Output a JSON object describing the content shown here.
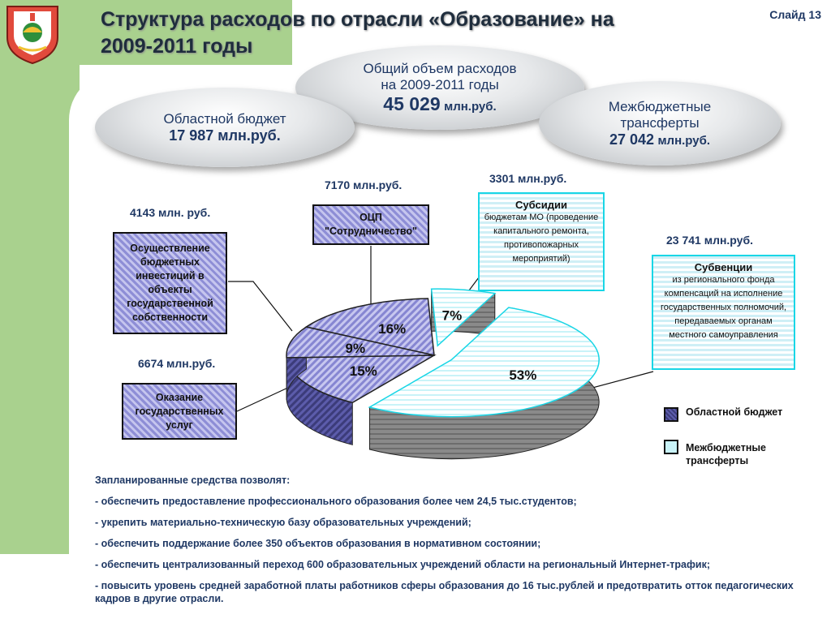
{
  "slide_label": "Слайд 13",
  "title_line1": "Структура расходов по отрасли «Образование» на",
  "title_line2": "2009-2011 годы",
  "total": {
    "line1": "Общий объем расходов",
    "line2": "на 2009-2011 годы",
    "value": "45 029",
    "unit": "млн.руб."
  },
  "regional": {
    "line1": "Областной бюджет",
    "value": "17 987 млн.руб."
  },
  "transfers": {
    "line1": "Межбюджетные",
    "line2": "трансферты",
    "value": "27 042",
    "unit": "млн.руб."
  },
  "boxes": {
    "invest": {
      "amount": "4143 млн. руб.",
      "text": "Осуществление бюджетных инвестиций в объекты государственной собственности"
    },
    "ocp": {
      "amount": "7170 млн.руб.",
      "text": "ОЦП \"Сотрудничество\""
    },
    "services": {
      "amount": "6674 млн.руб.",
      "text": "Оказание государственных услуг"
    },
    "subsidies": {
      "amount": "3301 млн.руб.",
      "head": "Субсидии",
      "text": "бюджетам МО (проведение капитального ремонта, противопожарных мероприятий)"
    },
    "subventions": {
      "amount": "23 741 млн.руб.",
      "head": "Субвенции",
      "text": "из регионального фонда компенсаций на исполнение государственных полномочий, передаваемых органам местного самоуправления"
    }
  },
  "chart_data": {
    "type": "pie",
    "title": "",
    "series": [
      {
        "label": "16%",
        "value": 16,
        "group": "Областной бюджет"
      },
      {
        "label": "9%",
        "value": 9,
        "group": "Областной бюджет"
      },
      {
        "label": "15%",
        "value": 15,
        "group": "Областной бюджет"
      },
      {
        "label": "53%",
        "value": 53,
        "group": "Межбюджетные трансферты"
      },
      {
        "label": "7%",
        "value": 7,
        "group": "Межбюджетные трансферты"
      }
    ],
    "legend": [
      "Областной бюджет",
      "Межбюджетные трансферты"
    ],
    "colors": {
      "regional": "#8e8ed6",
      "transfers": "#c9f3f8",
      "accent": "#19d6e6"
    }
  },
  "bottom": {
    "intro": "Запланированные средства позволят:",
    "items": [
      "- обеспечить предоставление профессионального образования более  чем 24,5 тыс.студентов;",
      "- укрепить материально-техническую базу образовательных учреждений;",
      "- обеспечить поддержание более 350 объектов образования в нормативном состоянии;",
      "- обеспечить централизованный переход 600 образовательных учреждений области на региональный Интернет-трафик;",
      "- повысить уровень средней заработной платы работников сферы образования до 16 тыс.рублей и предотвратить отток педагогических кадров в другие отрасли."
    ]
  }
}
